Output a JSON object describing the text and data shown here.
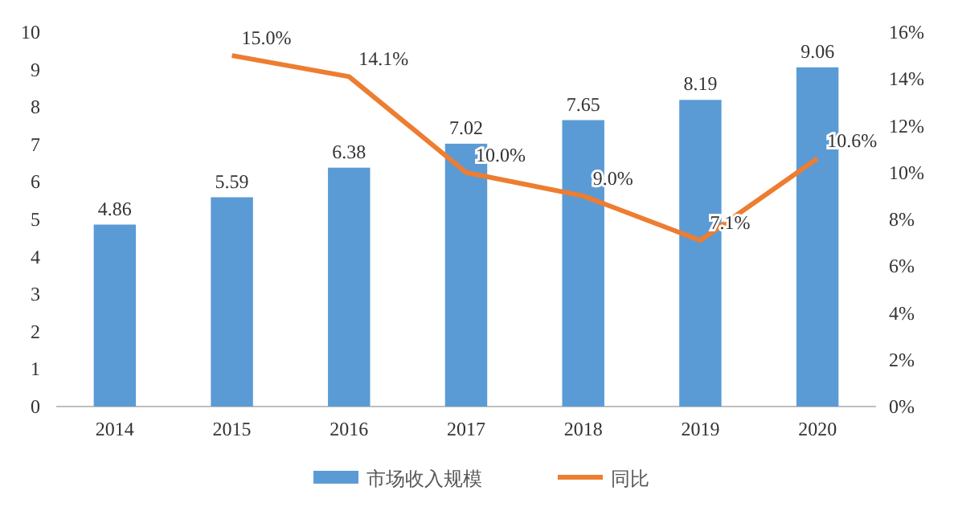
{
  "chart_data": {
    "type": "bar",
    "categories": [
      "2014",
      "2015",
      "2016",
      "2017",
      "2018",
      "2019",
      "2020"
    ],
    "series": [
      {
        "name": "市场收入规模",
        "color": "#5b9bd5",
        "values": [
          4.86,
          5.59,
          6.38,
          7.02,
          7.65,
          8.19,
          9.06
        ],
        "value_labels": [
          "4.86",
          "5.59",
          "6.38",
          "7.02",
          "7.65",
          "8.19",
          "9.06"
        ]
      },
      {
        "name": "同比",
        "type": "line",
        "axis": "y2",
        "color": "#ed7d31",
        "values": [
          null,
          15.0,
          14.1,
          10.0,
          9.0,
          7.1,
          10.6
        ],
        "value_labels": [
          null,
          "15.0%",
          "14.1%",
          "10.0%",
          "9.0%",
          "7.1%",
          "10.6%"
        ]
      }
    ],
    "ylim": [
      0,
      10
    ],
    "yticks": [
      0,
      1,
      2,
      3,
      4,
      5,
      6,
      7,
      8,
      9,
      10
    ],
    "y2lim": [
      0,
      16
    ],
    "y2ticks": [
      {
        "value": 0,
        "label": "0%"
      },
      {
        "value": 2,
        "label": "2%"
      },
      {
        "value": 4,
        "label": "4%"
      },
      {
        "value": 6,
        "label": "6%"
      },
      {
        "value": 8,
        "label": "8%"
      },
      {
        "value": 10,
        "label": "10%"
      },
      {
        "value": 12,
        "label": "12%"
      },
      {
        "value": 14,
        "label": "14%"
      },
      {
        "value": 16,
        "label": "16%"
      }
    ],
    "legend": "bottom",
    "grid": false
  }
}
